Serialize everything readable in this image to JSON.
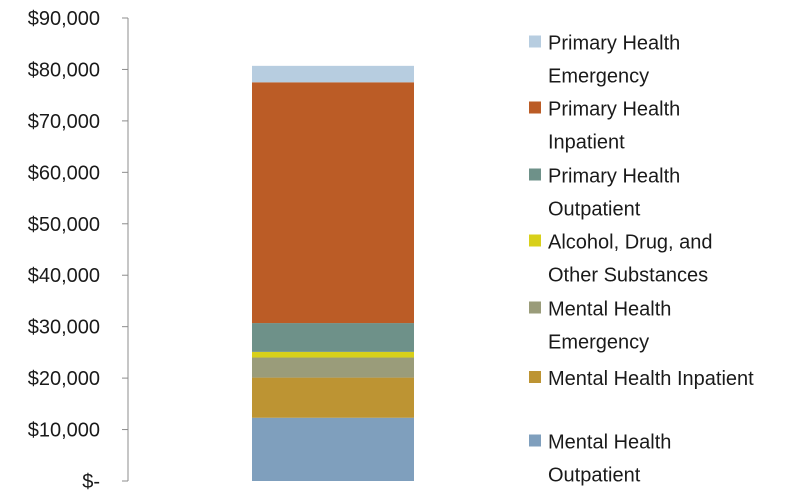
{
  "chart_data": {
    "type": "bar",
    "stacked": true,
    "categories": [
      ""
    ],
    "series": [
      {
        "name": "Mental Health Outpatient",
        "values": [
          12300
        ],
        "color": "#7f9fbd"
      },
      {
        "name": "Mental Health Inpatient",
        "values": [
          7800
        ],
        "color": "#bd9433"
      },
      {
        "name": "Mental Health Emergency",
        "values": [
          3900
        ],
        "color": "#9a9c7a"
      },
      {
        "name": "Alcohol, Drug, and Other Substances",
        "values": [
          1100
        ],
        "color": "#d8d01a"
      },
      {
        "name": "Primary Health Outpatient",
        "values": [
          5600
        ],
        "color": "#6e9189"
      },
      {
        "name": "Primary Health Inpatient",
        "values": [
          46800
        ],
        "color": "#bb5c26"
      },
      {
        "name": "Primary Health Emergency",
        "values": [
          3200
        ],
        "color": "#b7cde0"
      }
    ],
    "ylim": [
      0,
      90000
    ],
    "ytick_values": [
      0,
      10000,
      20000,
      30000,
      40000,
      50000,
      60000,
      70000,
      80000,
      90000
    ],
    "ytick_labels": [
      "$-",
      "$10,000",
      "$20,000",
      "$30,000",
      "$40,000",
      "$50,000",
      "$60,000",
      "$70,000",
      "$80,000",
      "$90,000"
    ],
    "legend": {
      "position": "right",
      "entries": [
        {
          "series": 6,
          "lines": [
            "Primary Health",
            "Emergency"
          ]
        },
        {
          "series": 5,
          "lines": [
            "Primary Health",
            "Inpatient"
          ]
        },
        {
          "series": 4,
          "lines": [
            "Primary Health",
            "Outpatient"
          ]
        },
        {
          "series": 3,
          "lines": [
            "Alcohol, Drug, and",
            "Other Substances"
          ]
        },
        {
          "series": 2,
          "lines": [
            "Mental Health",
            "Emergency"
          ]
        },
        {
          "series": 1,
          "lines": [
            "Mental Health Inpatient"
          ]
        },
        {
          "series": 0,
          "lines": [
            "Mental Health",
            "Outpatient"
          ]
        }
      ]
    },
    "grid": false,
    "title": "",
    "xlabel": "",
    "ylabel": ""
  }
}
